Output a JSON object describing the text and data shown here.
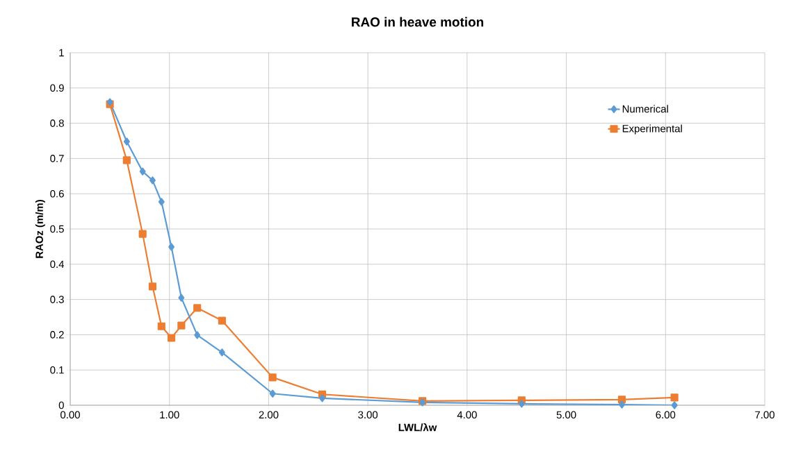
{
  "chart_data": {
    "type": "line",
    "title": "RAO in heave motion",
    "xlabel": "LWL/λw",
    "ylabel": "RAOz (m/m)",
    "x": [
      0.4,
      0.57,
      0.73,
      0.83,
      0.92,
      1.02,
      1.12,
      1.28,
      1.53,
      2.04,
      2.54,
      3.55,
      4.55,
      5.56,
      6.09
    ],
    "series": [
      {
        "name": "Numerical",
        "color": "#5b9bd5",
        "marker": "diamond",
        "values": [
          0.86,
          0.748,
          0.663,
          0.638,
          0.577,
          0.449,
          0.305,
          0.199,
          0.15,
          0.033,
          0.02,
          0.008,
          0.004,
          0.002,
          0.0
        ]
      },
      {
        "name": "Experimental",
        "color": "#ed7d31",
        "marker": "square",
        "values": [
          0.854,
          0.695,
          0.486,
          0.337,
          0.224,
          0.191,
          0.226,
          0.276,
          0.24,
          0.079,
          0.031,
          0.012,
          0.014,
          0.016,
          0.022
        ]
      }
    ],
    "xlim": [
      0,
      7
    ],
    "xticks": [
      {
        "value": 0,
        "label": "0.00"
      },
      {
        "value": 1,
        "label": "1.00"
      },
      {
        "value": 2,
        "label": "2.00"
      },
      {
        "value": 3,
        "label": "3.00"
      },
      {
        "value": 4,
        "label": "4.00"
      },
      {
        "value": 5,
        "label": "5.00"
      },
      {
        "value": 6,
        "label": "6.00"
      },
      {
        "value": 7,
        "label": "7.00"
      }
    ],
    "ylim": [
      0,
      1
    ],
    "yticks": [
      0,
      0.1,
      0.2,
      0.3,
      0.4,
      0.5,
      0.6,
      0.7,
      0.8,
      0.9,
      1
    ],
    "grid": true,
    "legend": "top right",
    "line_style": "solid"
  }
}
